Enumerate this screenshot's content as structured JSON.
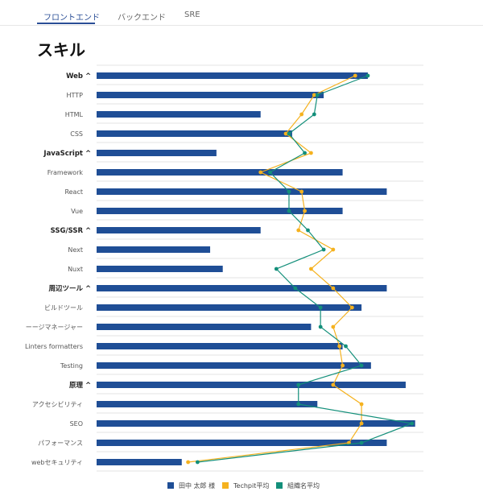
{
  "tabs": [
    {
      "label": "フロントエンド",
      "active": true
    },
    {
      "label": "バックエンド",
      "active": false
    },
    {
      "label": "SRE",
      "active": false
    }
  ],
  "page_title": "スキル",
  "colors": {
    "bar": "#1f4e96",
    "techpit": "#f5b21f",
    "org": "#138f7a",
    "accent": "#2a4e96"
  },
  "chart_data": {
    "type": "bar",
    "orientation": "horizontal",
    "grid": true,
    "categories": [
      {
        "label": "Web",
        "group": true,
        "chevron": "^"
      },
      {
        "label": "HTTP",
        "group": false
      },
      {
        "label": "HTML",
        "group": false
      },
      {
        "label": "CSS",
        "group": false
      },
      {
        "label": "JavaScript",
        "group": true,
        "chevron": "^"
      },
      {
        "label": "Framework",
        "group": false
      },
      {
        "label": "React",
        "group": false
      },
      {
        "label": "Vue",
        "group": false
      },
      {
        "label": "SSG/SSR",
        "group": true,
        "chevron": "^"
      },
      {
        "label": "Next",
        "group": false
      },
      {
        "label": "Nuxt",
        "group": false
      },
      {
        "label": "周辺ツール",
        "group": true,
        "chevron": "^"
      },
      {
        "label": "ビルドツール",
        "group": false
      },
      {
        "label": "ーージマネージャー",
        "group": false
      },
      {
        "label": "Linters formatters",
        "group": false
      },
      {
        "label": "Testing",
        "group": false
      },
      {
        "label": "原理",
        "group": true,
        "chevron": "^"
      },
      {
        "label": "アクセシビリティ",
        "group": false
      },
      {
        "label": "SEO",
        "group": false
      },
      {
        "label": "パフォーマンス",
        "group": false
      },
      {
        "label": "webセキュリティ",
        "group": false
      }
    ],
    "xlim": [
      0,
      100
    ],
    "series": [
      {
        "name": "田中 太郎 様",
        "kind": "bar",
        "values": [
          86,
          72,
          52,
          62,
          38,
          78,
          92,
          78,
          52,
          36,
          40,
          92,
          84,
          68,
          78,
          87,
          98,
          70,
          101,
          92,
          27
        ]
      },
      {
        "name": "Techpit平均",
        "kind": "line",
        "values": [
          82,
          69,
          65,
          60,
          68,
          52,
          65,
          66,
          64,
          75,
          68,
          75,
          81,
          75,
          77,
          78,
          75,
          84,
          84,
          80,
          29
        ]
      },
      {
        "name": "組織名平均",
        "kind": "line",
        "values": [
          86,
          70,
          69,
          61,
          66,
          55,
          61,
          61,
          67,
          72,
          57,
          63,
          71,
          71,
          79,
          84,
          64,
          64,
          100,
          84,
          32
        ]
      }
    ],
    "legend": {
      "position": "bottom-center"
    }
  }
}
